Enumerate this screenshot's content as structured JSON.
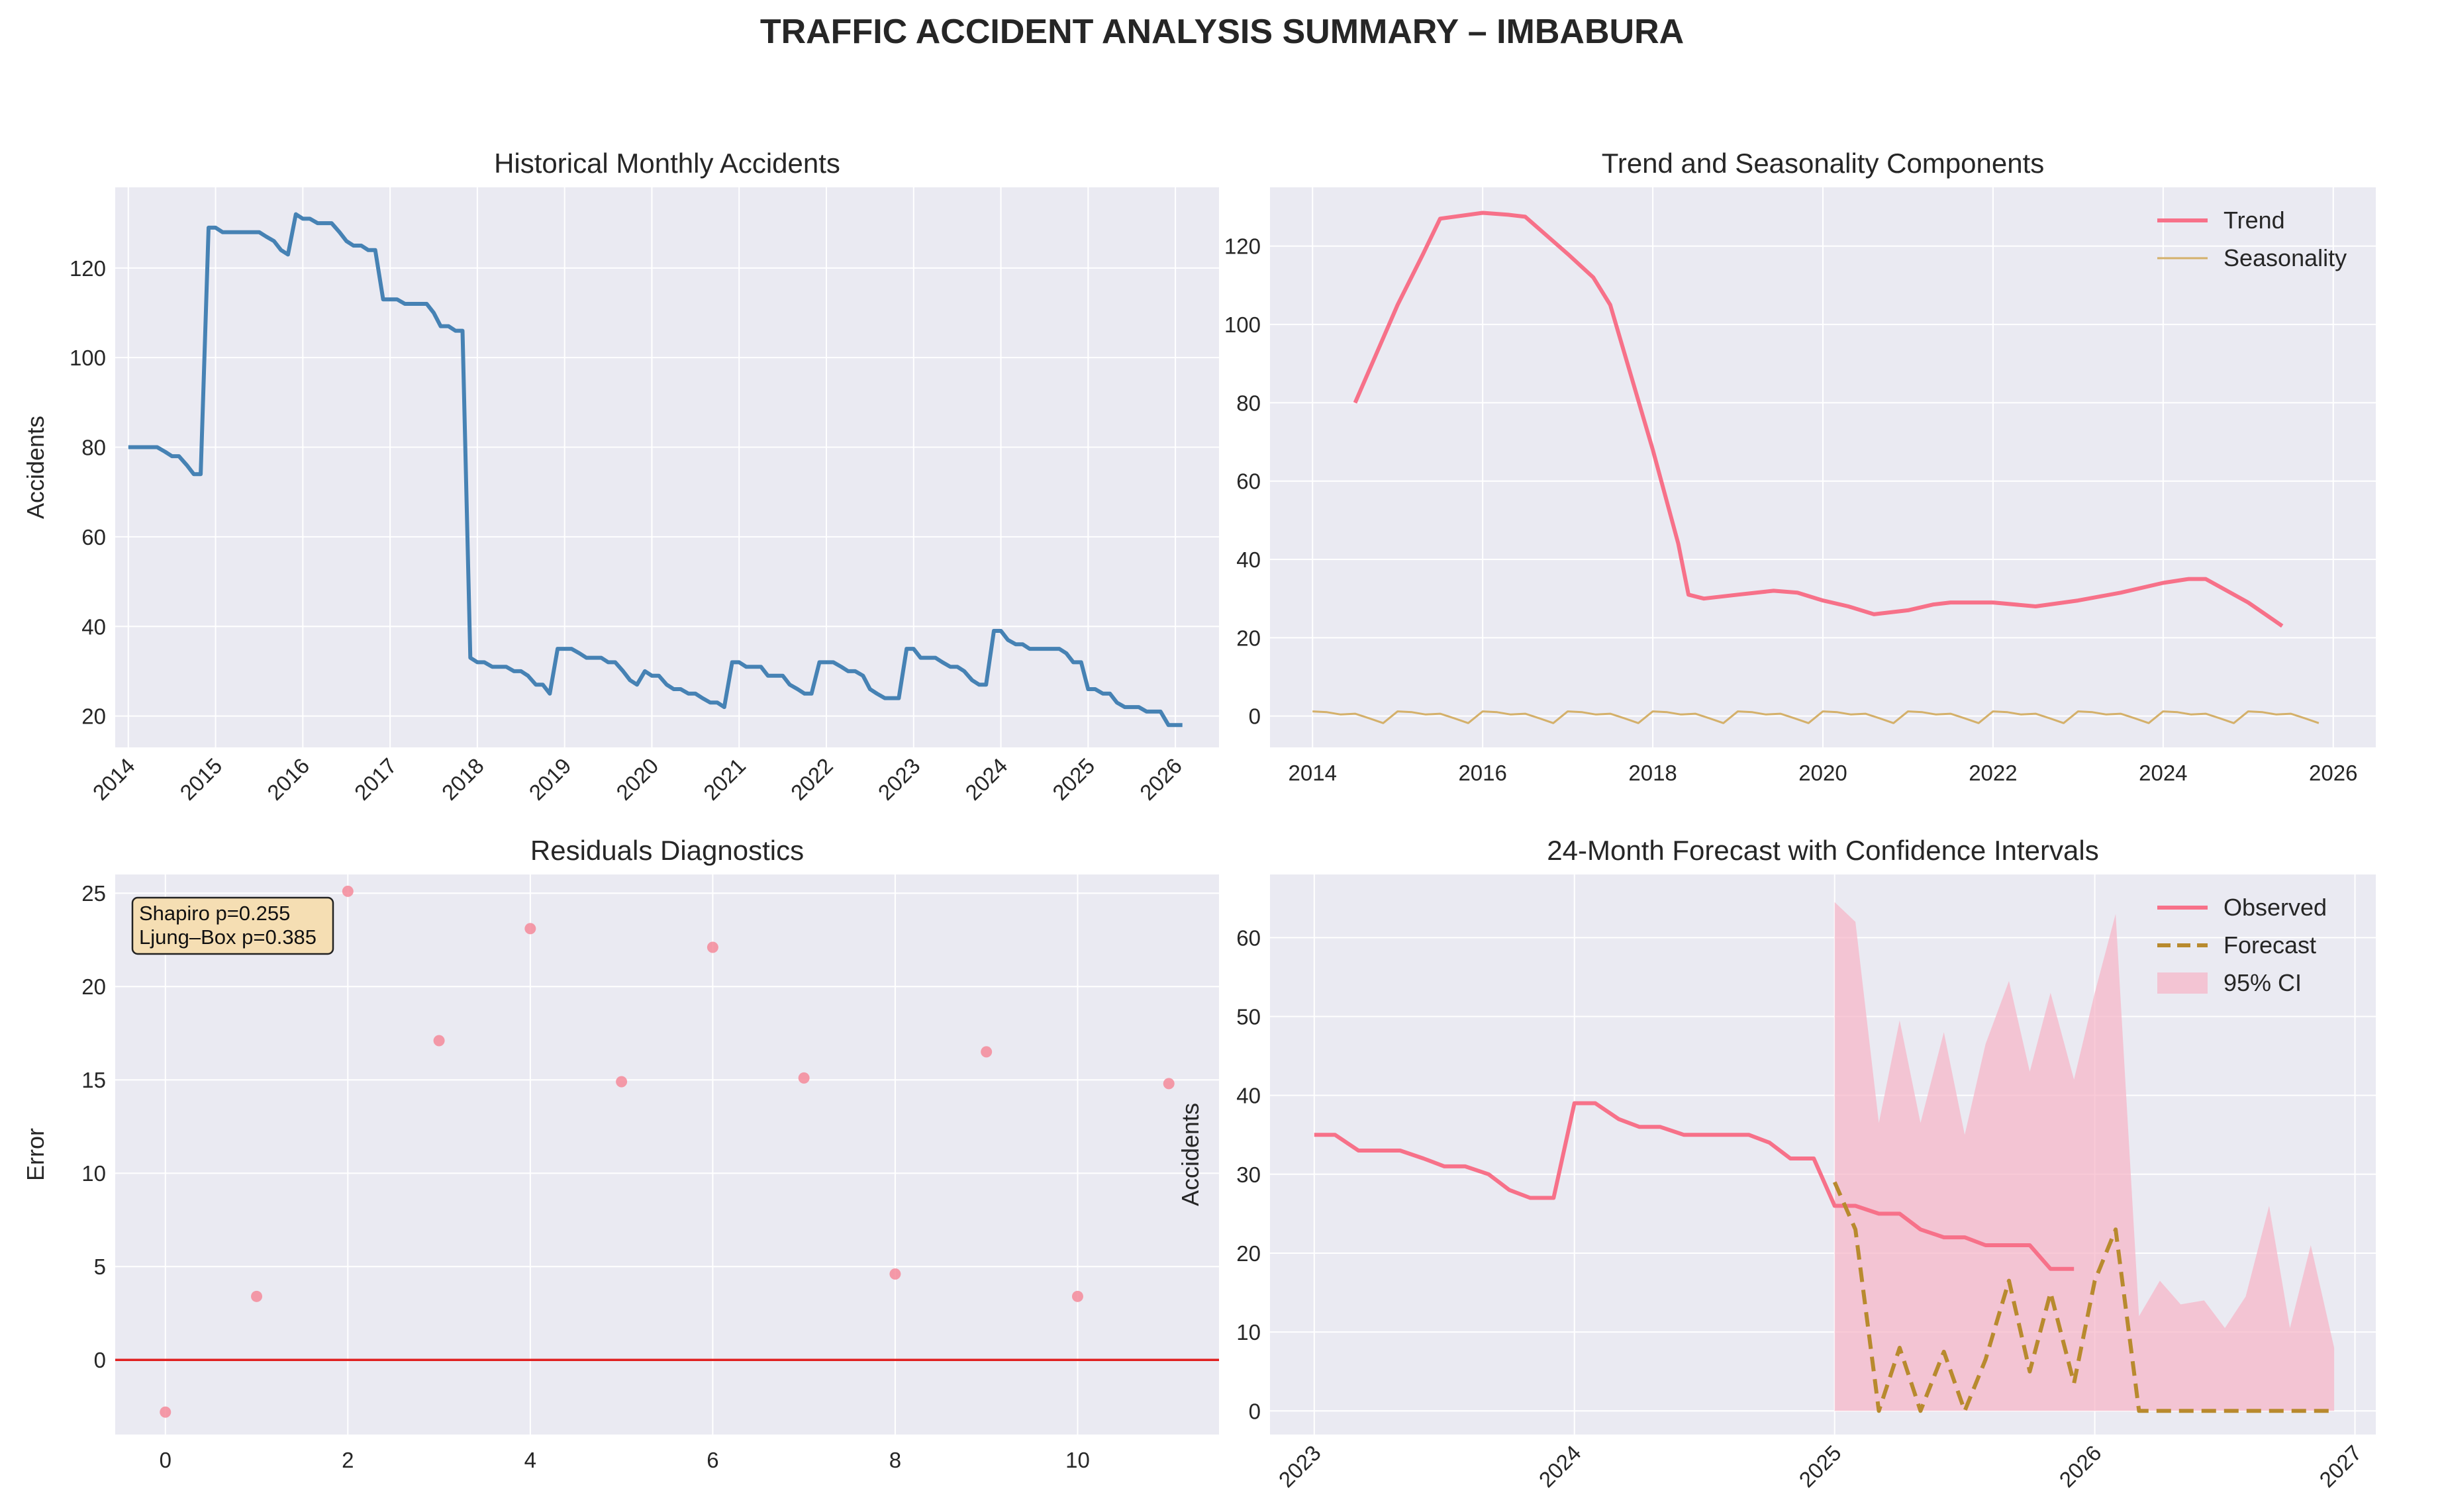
{
  "suptitle": "TRAFFIC ACCIDENT ANALYSIS SUMMARY – IMBABURA",
  "colors": {
    "axes_bg": "#eaeaf2",
    "grid": "#ffffff",
    "historical": "#4682b4",
    "trend": "#f77189",
    "seasonality": "#d4b06a",
    "residual_points": "#f48a9a",
    "zero_line": "#e02020",
    "observed": "#f77189",
    "forecast": "#b88a2e",
    "ci_fill": "#f6b3c6",
    "annotation_bg": "#f5deb3"
  },
  "chart_data": [
    {
      "id": "historical",
      "type": "line",
      "title": "Historical Monthly Accidents",
      "xlabel": "",
      "ylabel": "Accidents",
      "xlim": [
        2013.85,
        2026.5
      ],
      "ylim": [
        13,
        138
      ],
      "xticks": [
        2014,
        2015,
        2016,
        2017,
        2018,
        2019,
        2020,
        2021,
        2022,
        2023,
        2024,
        2025,
        2026
      ],
      "xtick_labels": [
        "2014",
        "2015",
        "2016",
        "2017",
        "2018",
        "2019",
        "2020",
        "2021",
        "2022",
        "2023",
        "2024",
        "2025",
        "2026"
      ],
      "xtick_rotation": 45,
      "yticks": [
        20,
        40,
        60,
        80,
        100,
        120
      ],
      "ytick_labels": [
        "20",
        "40",
        "60",
        "80",
        "100",
        "120"
      ],
      "series": [
        {
          "x": [
            2014.0,
            2014.08,
            2014.17,
            2014.25,
            2014.33,
            2014.42,
            2014.5,
            2014.58,
            2014.67,
            2014.75,
            2014.83,
            2014.92,
            2015.0,
            2015.08,
            2015.17,
            2015.25,
            2015.33,
            2015.42,
            2015.5,
            2015.58,
            2015.67,
            2015.75,
            2015.83,
            2015.92,
            2016.0,
            2016.08,
            2016.17,
            2016.25,
            2016.33,
            2016.42,
            2016.5,
            2016.58,
            2016.67,
            2016.75,
            2016.83,
            2016.92,
            2017.0,
            2017.08,
            2017.17,
            2017.25,
            2017.33,
            2017.42,
            2017.5,
            2017.58,
            2017.67,
            2017.75,
            2017.83,
            2017.92,
            2018.0,
            2018.08,
            2018.17,
            2018.25,
            2018.33,
            2018.42,
            2018.5,
            2018.58,
            2018.67,
            2018.75,
            2018.83,
            2018.92,
            2019.0,
            2019.08,
            2019.17,
            2019.25,
            2019.33,
            2019.42,
            2019.5,
            2019.58,
            2019.67,
            2019.75,
            2019.83,
            2019.92,
            2020.0,
            2020.08,
            2020.17,
            2020.25,
            2020.33,
            2020.42,
            2020.5,
            2020.58,
            2020.67,
            2020.75,
            2020.83,
            2020.92,
            2021.0,
            2021.08,
            2021.17,
            2021.25,
            2021.33,
            2021.42,
            2021.5,
            2021.58,
            2021.67,
            2021.75,
            2021.83,
            2021.92,
            2022.0,
            2022.08,
            2022.17,
            2022.25,
            2022.33,
            2022.42,
            2022.5,
            2022.58,
            2022.67,
            2022.75,
            2022.83,
            2022.92,
            2023.0,
            2023.08,
            2023.17,
            2023.25,
            2023.33,
            2023.42,
            2023.5,
            2023.58,
            2023.67,
            2023.75,
            2023.83,
            2023.92,
            2024.0,
            2024.08,
            2024.17,
            2024.25,
            2024.33,
            2024.42,
            2024.5,
            2024.58,
            2024.67,
            2024.75,
            2024.83,
            2024.92,
            2025.0,
            2025.08,
            2025.17,
            2025.25,
            2025.33,
            2025.42,
            2025.5,
            2025.58,
            2025.67,
            2025.75,
            2025.83,
            2025.92,
            2026.0,
            2026.08
          ],
          "y": [
            80,
            80,
            80,
            80,
            80,
            79,
            78,
            78,
            76,
            74,
            74,
            129,
            129,
            128,
            128,
            128,
            128,
            128,
            128,
            127,
            126,
            124,
            123,
            132,
            131,
            131,
            130,
            130,
            130,
            128,
            126,
            125,
            125,
            124,
            124,
            113,
            113,
            113,
            112,
            112,
            112,
            112,
            110,
            107,
            107,
            106,
            106,
            33,
            32,
            32,
            31,
            31,
            31,
            30,
            30,
            29,
            27,
            27,
            25,
            35,
            35,
            35,
            34,
            33,
            33,
            33,
            32,
            32,
            30,
            28,
            27,
            30,
            29,
            29,
            27,
            26,
            26,
            25,
            25,
            24,
            23,
            23,
            22,
            32,
            32,
            31,
            31,
            31,
            29,
            29,
            29,
            27,
            26,
            25,
            25,
            32,
            32,
            32,
            31,
            30,
            30,
            29,
            26,
            25,
            24,
            24,
            24,
            35,
            35,
            33,
            33,
            33,
            32,
            31,
            31,
            30,
            28,
            27,
            27,
            39,
            39,
            37,
            36,
            36,
            35,
            35,
            35,
            35,
            35,
            34,
            32,
            32,
            26,
            26,
            25,
            25,
            23,
            22,
            22,
            22,
            21,
            21,
            21,
            18,
            18,
            18
          ]
        }
      ]
    },
    {
      "id": "components",
      "type": "line",
      "title": "Trend and Seasonality Components",
      "xlabel": "",
      "ylabel": "",
      "xlim": [
        2013.5,
        2026.5
      ],
      "ylim": [
        -8,
        135
      ],
      "xticks": [
        2014,
        2016,
        2018,
        2020,
        2022,
        2024,
        2026
      ],
      "xtick_labels": [
        "2014",
        "2016",
        "2018",
        "2020",
        "2022",
        "2024",
        "2026"
      ],
      "xtick_rotation": 0,
      "yticks": [
        0,
        20,
        40,
        60,
        80,
        100,
        120
      ],
      "ytick_labels": [
        "0",
        "20",
        "40",
        "60",
        "80",
        "100",
        "120"
      ],
      "legend_position": "top-right",
      "series": [
        {
          "name": "Trend",
          "x": [
            2014.5,
            2015.0,
            2015.3,
            2015.5,
            2016.0,
            2016.3,
            2016.5,
            2017.0,
            2017.3,
            2017.5,
            2018.0,
            2018.3,
            2018.42,
            2018.6,
            2019.0,
            2019.42,
            2019.7,
            2020.0,
            2020.3,
            2020.6,
            2021.0,
            2021.3,
            2021.5,
            2022.0,
            2022.5,
            2023.0,
            2023.5,
            2024.0,
            2024.3,
            2024.5,
            2025.0,
            2025.4
          ],
          "y": [
            80,
            105,
            118,
            127,
            128.5,
            128,
            127.5,
            118,
            112,
            105,
            68,
            44,
            31,
            30,
            31,
            32,
            31.5,
            29.5,
            28,
            26,
            27,
            28.5,
            29,
            29,
            28,
            29.5,
            31.5,
            34,
            35,
            35,
            29,
            23
          ]
        },
        {
          "name": "Seasonality",
          "x": [
            2014.0,
            2014.17,
            2014.33,
            2014.5,
            2014.67,
            2014.83,
            2015.0,
            2015.17,
            2015.33,
            2015.5,
            2015.67,
            2015.83,
            2016.0,
            2016.17,
            2016.33,
            2016.5,
            2016.67,
            2016.83,
            2017.0,
            2017.17,
            2017.33,
            2017.5,
            2017.67,
            2017.83,
            2018.0,
            2018.17,
            2018.33,
            2018.5,
            2018.67,
            2018.83,
            2019.0,
            2019.17,
            2019.33,
            2019.5,
            2019.67,
            2019.83,
            2020.0,
            2020.17,
            2020.33,
            2020.5,
            2020.67,
            2020.83,
            2021.0,
            2021.17,
            2021.33,
            2021.5,
            2021.67,
            2021.83,
            2022.0,
            2022.17,
            2022.33,
            2022.5,
            2022.67,
            2022.83,
            2023.0,
            2023.17,
            2023.33,
            2023.5,
            2023.67,
            2023.83,
            2024.0,
            2024.17,
            2024.33,
            2024.5,
            2024.67,
            2024.83,
            2025.0,
            2025.17,
            2025.33,
            2025.5,
            2025.67,
            2025.83
          ],
          "y": [
            1.2,
            1.0,
            0.4,
            0.6,
            -0.6,
            -1.8,
            1.2,
            1.0,
            0.4,
            0.6,
            -0.6,
            -1.8,
            1.2,
            1.0,
            0.4,
            0.6,
            -0.6,
            -1.8,
            1.2,
            1.0,
            0.4,
            0.6,
            -0.6,
            -1.8,
            1.2,
            1.0,
            0.4,
            0.6,
            -0.6,
            -1.8,
            1.2,
            1.0,
            0.4,
            0.6,
            -0.6,
            -1.8,
            1.2,
            1.0,
            0.4,
            0.6,
            -0.6,
            -1.8,
            1.2,
            1.0,
            0.4,
            0.6,
            -0.6,
            -1.8,
            1.2,
            1.0,
            0.4,
            0.6,
            -0.6,
            -1.8,
            1.2,
            1.0,
            0.4,
            0.6,
            -0.6,
            -1.8,
            1.2,
            1.0,
            0.4,
            0.6,
            -0.6,
            -1.8,
            1.2,
            1.0,
            0.4,
            0.6,
            -0.6,
            -1.8
          ]
        }
      ]
    },
    {
      "id": "residuals",
      "type": "scatter",
      "title": "Residuals Diagnostics",
      "xlabel": "",
      "ylabel": "Error",
      "xlim": [
        -0.55,
        11.55
      ],
      "ylim": [
        -4,
        26
      ],
      "xticks": [
        0,
        2,
        4,
        6,
        8,
        10
      ],
      "xtick_labels": [
        "0",
        "2",
        "4",
        "6",
        "8",
        "10"
      ],
      "xtick_rotation": 0,
      "yticks": [
        0,
        5,
        10,
        15,
        20,
        25
      ],
      "ytick_labels": [
        "0",
        "5",
        "10",
        "15",
        "20",
        "25"
      ],
      "reference_line_y": 0,
      "annotation": [
        "Shapiro p=0.255",
        "Ljung–Box p=0.385"
      ],
      "series": [
        {
          "x": [
            0,
            1,
            2,
            3,
            4,
            5,
            6,
            7,
            8,
            9,
            10,
            11
          ],
          "y": [
            -2.8,
            3.4,
            25.1,
            17.1,
            23.1,
            14.9,
            22.1,
            15.1,
            4.6,
            16.5,
            3.4,
            14.8
          ]
        }
      ]
    },
    {
      "id": "forecast",
      "type": "line",
      "title": "24-Month Forecast with Confidence Intervals",
      "xlabel": "",
      "ylabel": "Accidents",
      "xlim": [
        2022.83,
        2027.08
      ],
      "ylim": [
        -3,
        68
      ],
      "xticks": [
        2023,
        2024,
        2025,
        2026,
        2027
      ],
      "xtick_labels": [
        "2023",
        "2024",
        "2025",
        "2026",
        "2027"
      ],
      "xtick_rotation": 45,
      "yticks": [
        0,
        10,
        20,
        30,
        40,
        50,
        60
      ],
      "ytick_labels": [
        "0",
        "10",
        "20",
        "30",
        "40",
        "50",
        "60"
      ],
      "legend_position": "top-right",
      "series": [
        {
          "name": "Observed",
          "x": [
            2023.0,
            2023.08,
            2023.17,
            2023.25,
            2023.33,
            2023.42,
            2023.5,
            2023.58,
            2023.67,
            2023.75,
            2023.83,
            2023.92,
            2024.0,
            2024.08,
            2024.17,
            2024.25,
            2024.33,
            2024.42,
            2024.5,
            2024.58,
            2024.67,
            2024.75,
            2024.83,
            2024.92,
            2025.0,
            2025.08,
            2025.17,
            2025.25,
            2025.33,
            2025.42,
            2025.5,
            2025.58,
            2025.67,
            2025.75,
            2025.83,
            2025.92
          ],
          "y": [
            35,
            35,
            33,
            33,
            33,
            32,
            31,
            31,
            30,
            28,
            27,
            27,
            39,
            39,
            37,
            36,
            36,
            35,
            35,
            35,
            35,
            34,
            32,
            32,
            26,
            26,
            25,
            25,
            23,
            22,
            22,
            21,
            21,
            21,
            18,
            18
          ]
        },
        {
          "name": "Forecast",
          "x": [
            2025.0,
            2025.08,
            2025.17,
            2025.25,
            2025.33,
            2025.42,
            2025.5,
            2025.58,
            2025.67,
            2025.75,
            2025.83,
            2025.92,
            2026.0,
            2026.08,
            2026.17,
            2026.25,
            2026.33,
            2026.42,
            2026.5,
            2026.58,
            2026.67,
            2026.75,
            2026.83,
            2026.92
          ],
          "y": [
            29,
            23,
            0,
            8,
            0,
            7.5,
            0,
            6.5,
            16.5,
            5,
            15,
            3.5,
            16.5,
            23,
            0,
            0,
            0,
            0,
            0,
            0,
            0,
            0,
            0,
            0
          ]
        },
        {
          "name": "95% CI",
          "x": [
            2025.0,
            2025.08,
            2025.17,
            2025.25,
            2025.33,
            2025.42,
            2025.5,
            2025.58,
            2025.67,
            2025.75,
            2025.83,
            2025.92,
            2026.0,
            2026.08,
            2026.17,
            2026.25,
            2026.33,
            2026.42,
            2026.5,
            2026.58,
            2026.67,
            2026.75,
            2026.83,
            2026.92
          ],
          "lower": [
            0,
            0,
            0,
            0,
            0,
            0,
            0,
            0,
            0,
            0,
            0,
            0,
            0,
            0,
            0,
            0,
            0,
            0,
            0,
            0,
            0,
            0,
            0,
            0
          ],
          "upper": [
            64.5,
            62,
            36.5,
            49.5,
            36.5,
            48,
            35,
            46.5,
            54.5,
            43,
            53,
            42,
            53,
            63,
            12,
            16.5,
            13.5,
            14,
            10.5,
            14.5,
            26,
            10.5,
            21,
            8
          ]
        }
      ]
    }
  ]
}
